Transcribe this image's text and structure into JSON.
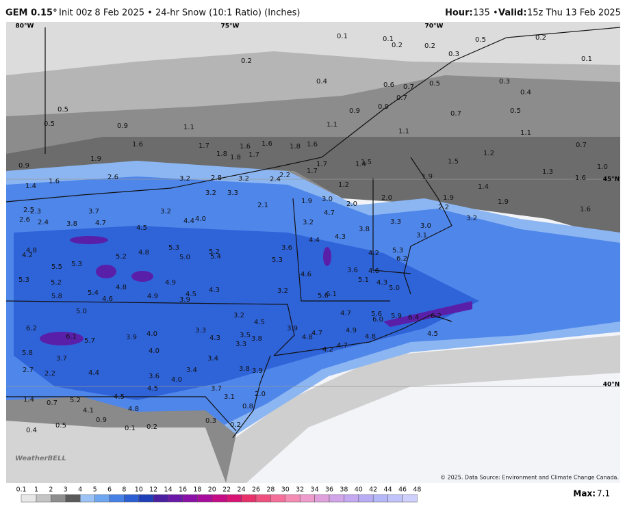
{
  "header": {
    "model": "GEM 0.15°",
    "info": "Init 00z 8 Feb 2025 • 24-hr Snow (10:1 Ratio) (Inches)",
    "hour_label": "Hour:",
    "hour": "135 •",
    "valid_label": "Valid:",
    "valid": "15z Thu 13 Feb 2025"
  },
  "map": {
    "graticule": [
      "80°W",
      "75°W",
      "70°W",
      "45°N",
      "40°N"
    ],
    "logo": "WeatherBELL",
    "credit": "© 2025. Data Source: Environment and Climate Change Canada.",
    "values": [
      "0.1",
      "0.1",
      "0.2",
      "0.2",
      "0.3",
      "0.5",
      "0.2",
      "0.1",
      "0.2",
      "0.4",
      "0.6",
      "0.7",
      "0.5",
      "0.3",
      "0.4",
      "0.5",
      "0.5",
      "0.9",
      "1.1",
      "0.9",
      "0.9",
      "0.7",
      "0.7",
      "0.5",
      "1.1",
      "1.1",
      "1.1",
      "0.7",
      "1.6",
      "1.7",
      "1.8",
      "1.8",
      "1.6",
      "1.7",
      "1.6",
      "1.8",
      "1.6",
      "1.7",
      "1.7",
      "1.4",
      "1.5",
      "1.5",
      "1.2",
      "1.3",
      "1.0",
      "1.6",
      "1.9",
      "0.9",
      "2.6",
      "1.6",
      "1.4",
      "3.2",
      "2.8",
      "3.2",
      "2.4",
      "2.2",
      "1.2",
      "1.9",
      "1.4",
      "1.9",
      "2.2",
      "1.9",
      "1.6",
      "3.2",
      "3.3",
      "2.1",
      "3.0",
      "2.0",
      "2.0",
      "1.9",
      "2.5",
      "2.3",
      "3.7",
      "3.2",
      "2.6",
      "2.4",
      "3.8",
      "4.7",
      "4.5",
      "4.4",
      "4.0",
      "4.7",
      "3.2",
      "3.8",
      "3.3",
      "3.0",
      "3.2",
      "3.1",
      "4.4",
      "4.3",
      "3.6",
      "5.3",
      "5.2",
      "5.4",
      "5.0",
      "4.8",
      "5.2",
      "4.2",
      "5.3",
      "6.2",
      "4.8",
      "4.2",
      "5.5",
      "5.3",
      "5.3",
      "3.6",
      "4.6",
      "4.6",
      "5.3",
      "5.2",
      "4.8",
      "4.9",
      "4.3",
      "4.3",
      "5.0",
      "5.1",
      "3.2",
      "5.8",
      "5.4",
      "4.6",
      "4.9",
      "3.9",
      "4.5",
      "5.6",
      "6.1",
      "5.0",
      "3.2",
      "4.5",
      "4.7",
      "5.6",
      "6.0",
      "5.9",
      "6.4",
      "6.2",
      "6.2",
      "6.1",
      "5.7",
      "3.9",
      "4.0",
      "3.3",
      "4.3",
      "3.5",
      "3.8",
      "3.3",
      "3.9",
      "4.8",
      "4.7",
      "4.9",
      "4.8",
      "4.5",
      "4.2",
      "4.7",
      "5.8",
      "3.7",
      "4.0",
      "3.4",
      "2.7",
      "2.2",
      "4.4",
      "3.6",
      "4.0",
      "3.4",
      "3.8",
      "3.9",
      "4.5",
      "3.7",
      "3.1",
      "2.0",
      "1.4",
      "0.7",
      "5.2",
      "4.5",
      "4.1",
      "4.8",
      "0.8",
      "0.9",
      "0.3",
      "0.4",
      "0.5",
      "0.1",
      "0.2",
      "0.2"
    ]
  },
  "colorbar": {
    "labels": [
      "0.1",
      "1",
      "2",
      "3",
      "4",
      "5",
      "6",
      "8",
      "10",
      "12",
      "14",
      "16",
      "18",
      "20",
      "22",
      "24",
      "26",
      "28",
      "30",
      "32",
      "34",
      "36",
      "38",
      "40",
      "42",
      "44",
      "46",
      "48"
    ],
    "colors": [
      "#e8e8e8",
      "#c4c4c4",
      "#8e8e8e",
      "#5a5a5a",
      "#9cc3f5",
      "#6ea6f0",
      "#4682e6",
      "#2d5fd4",
      "#1f3fb8",
      "#4a1fa0",
      "#6a18a8",
      "#8a10a8",
      "#a80c9c",
      "#c40c86",
      "#d81474",
      "#e8306a",
      "#f05080",
      "#f4709a",
      "#f48cb4",
      "#ee9ccc",
      "#e0a0dc",
      "#d2a4e8",
      "#c4a8f0",
      "#b8acf4",
      "#b4b8f8",
      "#c0c4fa",
      "#d0d0fc"
    ],
    "max_label": "Max:",
    "max": "7.1"
  }
}
